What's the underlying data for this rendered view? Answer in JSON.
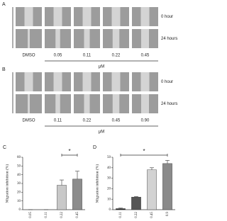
{
  "figure_panels": [
    {
      "label": "A",
      "rows": [
        "0 hour",
        "24 hours"
      ],
      "doses": [
        "DMSO",
        "0.05",
        "0.11",
        "0.22",
        "0.45"
      ],
      "unit": "μM"
    },
    {
      "label": "B",
      "rows": [
        "0 hour",
        "24 hours"
      ],
      "doses": [
        "DMSO",
        "0.11",
        "0.22",
        "0.45",
        "0.90"
      ],
      "unit": "μM"
    }
  ],
  "chart_data": [
    {
      "type": "bar",
      "label": "C",
      "y_label": "Migration inhibition (%)",
      "categories": [
        "0.05",
        "0.11",
        "0.22",
        "0.45"
      ],
      "values": [
        0,
        0,
        28,
        35
      ],
      "errors": [
        0,
        0,
        6,
        9
      ],
      "colors": [
        "#cfcfcf",
        "#cfcfcf",
        "#c8c8c8",
        "#8c8c8c"
      ],
      "ylim": [
        0,
        60
      ],
      "yticks": [
        0,
        10,
        20,
        30,
        40,
        50,
        60
      ],
      "significance": {
        "from": 2,
        "to": 3,
        "label": "*"
      }
    },
    {
      "type": "bar",
      "label": "D",
      "y_label": "Migration inhibition (%)",
      "categories": [
        "0.11",
        "0.22",
        "0.45",
        "0.9"
      ],
      "values": [
        1,
        12,
        38,
        44
      ],
      "errors": [
        0.5,
        0.5,
        2,
        3
      ],
      "colors": [
        "#222222",
        "#555555",
        "#d2d2d2",
        "#8a8a8a"
      ],
      "ylim": [
        0,
        50
      ],
      "yticks": [
        0,
        10,
        20,
        30,
        40,
        50
      ],
      "significance": {
        "from": 0,
        "to": 3,
        "label": "*"
      }
    }
  ]
}
